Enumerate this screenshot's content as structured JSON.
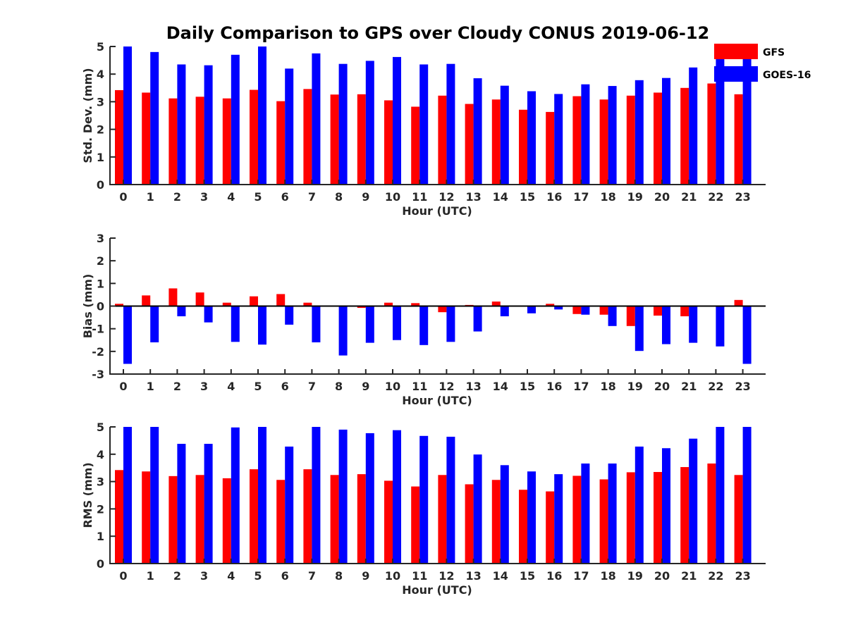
{
  "colors": {
    "gfs": "#ff0000",
    "goes16": "#0000ff",
    "axis": "#262626"
  },
  "chart_data": [
    {
      "type": "bar",
      "title": "Daily Comparison to GPS over Cloudy CONUS 2019-06-12",
      "xlabel": "Hour (UTC)",
      "ylabel": "Std. Dev. (mm)",
      "ylim": [
        0,
        5
      ],
      "yticks": [
        "0",
        "1",
        "2",
        "3",
        "4",
        "5"
      ],
      "categories": [
        "0",
        "1",
        "2",
        "3",
        "4",
        "5",
        "6",
        "7",
        "8",
        "9",
        "10",
        "11",
        "12",
        "13",
        "14",
        "15",
        "16",
        "17",
        "18",
        "19",
        "20",
        "21",
        "22",
        "23"
      ],
      "legend": {
        "placement": "top-right",
        "entries": [
          "GFS",
          "GOES-16"
        ]
      },
      "series": [
        {
          "name": "GFS",
          "color": "#ff0000",
          "values": [
            3.42,
            3.33,
            3.12,
            3.18,
            3.12,
            3.43,
            3.02,
            3.46,
            3.26,
            3.27,
            3.05,
            2.82,
            3.22,
            2.92,
            3.08,
            2.71,
            2.63,
            3.2,
            3.08,
            3.22,
            3.33,
            3.5,
            3.66,
            3.27
          ]
        },
        {
          "name": "GOES-16",
          "color": "#0000ff",
          "values": [
            5.0,
            4.8,
            4.35,
            4.32,
            4.7,
            5.0,
            4.2,
            4.75,
            4.37,
            4.48,
            4.62,
            4.35,
            4.37,
            3.85,
            3.58,
            3.38,
            3.28,
            3.63,
            3.57,
            3.78,
            3.86,
            4.24,
            4.87,
            4.87
          ]
        }
      ]
    },
    {
      "type": "bar",
      "title": "",
      "xlabel": "Hour (UTC)",
      "ylabel": "Bias (mm)",
      "ylim": [
        -3,
        3
      ],
      "yticks": [
        "-3",
        "-2",
        "-1",
        "0",
        "1",
        "2",
        "3"
      ],
      "categories": [
        "0",
        "1",
        "2",
        "3",
        "4",
        "5",
        "6",
        "7",
        "8",
        "9",
        "10",
        "11",
        "12",
        "13",
        "14",
        "15",
        "16",
        "17",
        "18",
        "19",
        "20",
        "21",
        "22",
        "23"
      ],
      "series": [
        {
          "name": "GFS",
          "color": "#ff0000",
          "values": [
            0.1,
            0.47,
            0.78,
            0.6,
            0.15,
            0.43,
            0.53,
            0.15,
            0.02,
            -0.08,
            0.15,
            0.13,
            -0.27,
            0.05,
            0.2,
            0.0,
            0.1,
            -0.35,
            -0.38,
            -0.88,
            -0.42,
            -0.45,
            0.03,
            0.27
          ]
        },
        {
          "name": "GOES-16",
          "color": "#0000ff",
          "values": [
            -2.55,
            -1.6,
            -0.45,
            -0.72,
            -1.58,
            -1.7,
            -0.82,
            -1.6,
            -2.18,
            -1.62,
            -1.5,
            -1.72,
            -1.58,
            -1.12,
            -0.45,
            -0.32,
            -0.15,
            -0.38,
            -0.88,
            -1.98,
            -1.68,
            -1.62,
            -1.78,
            -2.55
          ]
        }
      ]
    },
    {
      "type": "bar",
      "title": "",
      "xlabel": "Hour (UTC)",
      "ylabel": "RMS (mm)",
      "ylim": [
        0,
        5
      ],
      "yticks": [
        "0",
        "1",
        "2",
        "3",
        "4",
        "5"
      ],
      "categories": [
        "0",
        "1",
        "2",
        "3",
        "4",
        "5",
        "6",
        "7",
        "8",
        "9",
        "10",
        "11",
        "12",
        "13",
        "14",
        "15",
        "16",
        "17",
        "18",
        "19",
        "20",
        "21",
        "22",
        "23"
      ],
      "series": [
        {
          "name": "GFS",
          "color": "#ff0000",
          "values": [
            3.42,
            3.37,
            3.2,
            3.24,
            3.12,
            3.45,
            3.06,
            3.45,
            3.24,
            3.27,
            3.03,
            2.82,
            3.24,
            2.9,
            3.06,
            2.7,
            2.64,
            3.21,
            3.08,
            3.34,
            3.35,
            3.53,
            3.66,
            3.24
          ]
        },
        {
          "name": "GOES-16",
          "color": "#0000ff",
          "values": [
            5.0,
            5.0,
            4.38,
            4.38,
            4.98,
            5.0,
            4.28,
            5.0,
            4.9,
            4.77,
            4.88,
            4.67,
            4.64,
            3.99,
            3.6,
            3.37,
            3.27,
            3.66,
            3.66,
            4.28,
            4.22,
            4.57,
            5.0,
            5.0
          ]
        }
      ]
    }
  ]
}
